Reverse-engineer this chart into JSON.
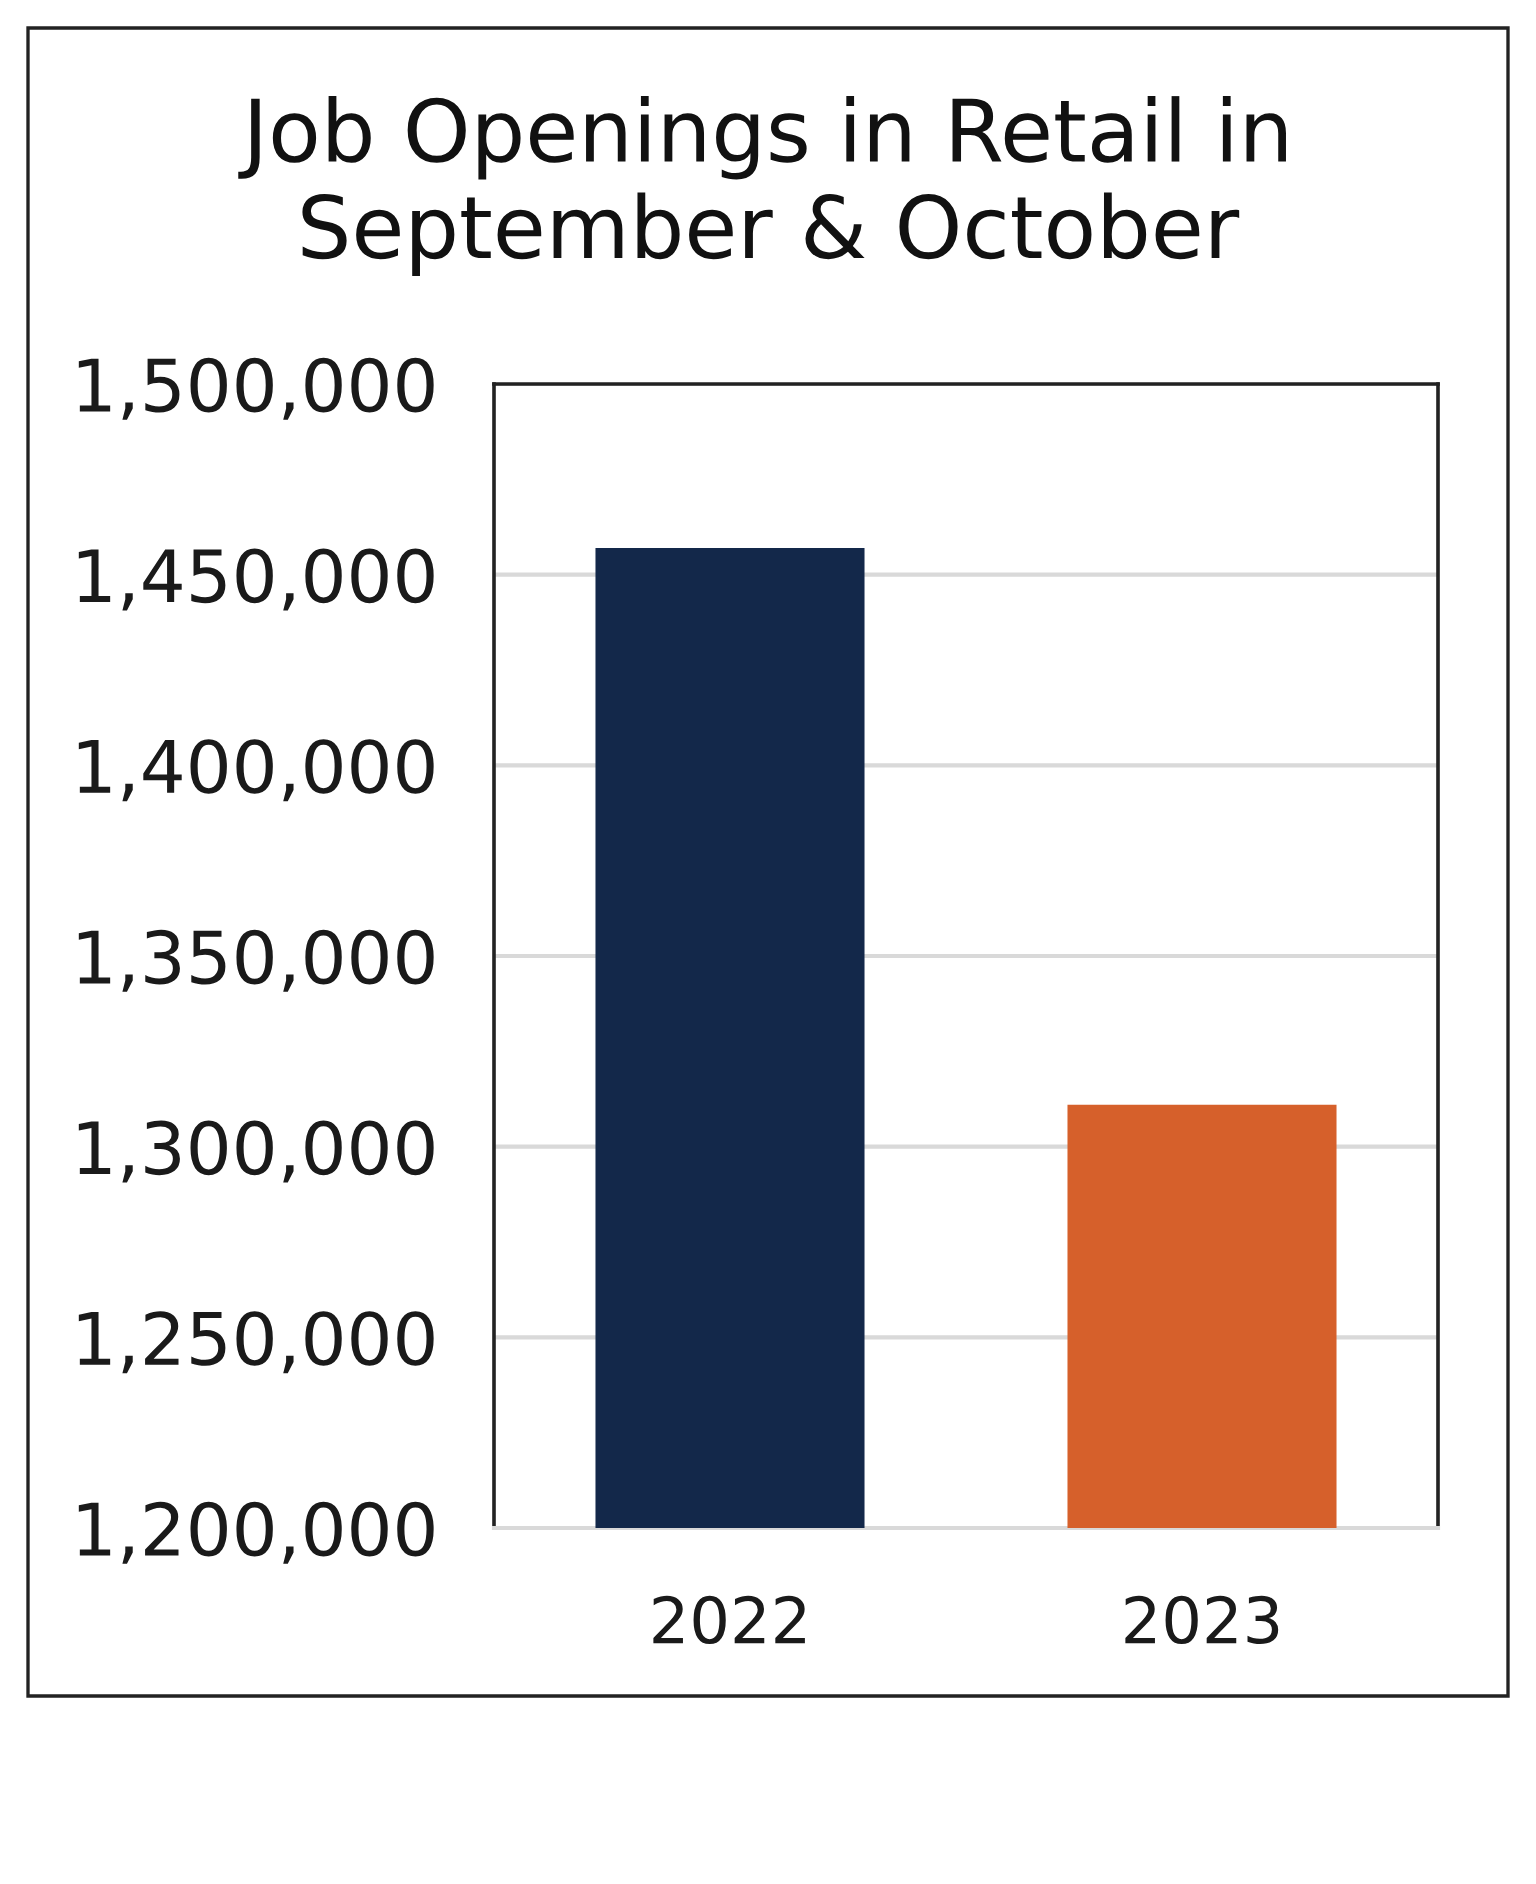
{
  "chart_data": {
    "type": "bar",
    "title": "Job Openings in Retail in\nSeptember & October",
    "categories": [
      "2022",
      "2023"
    ],
    "values": [
      1457000,
      1311000
    ],
    "colors": [
      "#13284a",
      "#d6602b"
    ],
    "ylim": [
      1200000,
      1500000
    ],
    "yticks": [
      {
        "value": 1200000,
        "label": "1,200,000"
      },
      {
        "value": 1250000,
        "label": "1,250,000"
      },
      {
        "value": 1300000,
        "label": "1,300,000"
      },
      {
        "value": 1350000,
        "label": "1,350,000"
      },
      {
        "value": 1400000,
        "label": "1,400,000"
      },
      {
        "value": 1450000,
        "label": "1,450,000"
      },
      {
        "value": 1500000,
        "label": "1,500,000"
      }
    ],
    "grid": "y"
  }
}
